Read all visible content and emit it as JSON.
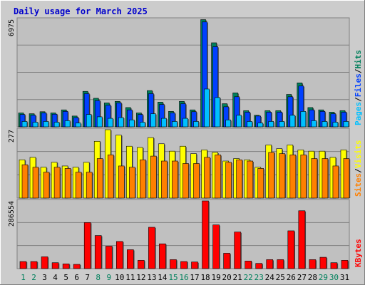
{
  "chart_data": {
    "type": "bar",
    "title": "Daily usage for March 2025",
    "categories": [
      "1",
      "2",
      "3",
      "4",
      "5",
      "6",
      "7",
      "8",
      "9",
      "10",
      "11",
      "12",
      "13",
      "14",
      "15",
      "16",
      "17",
      "18",
      "19",
      "20",
      "21",
      "22",
      "23",
      "24",
      "25",
      "26",
      "27",
      "28",
      "29",
      "30",
      "31"
    ],
    "weekend_days": [
      "1",
      "2",
      "8",
      "9",
      "15",
      "16",
      "22",
      "23",
      "29",
      "30"
    ],
    "panels": [
      {
        "id": "hits",
        "ymax": 6975,
        "ymax_label": "6975",
        "axis_label": {
          "parts": [
            "Pages",
            "/",
            "Files",
            "/",
            "Hits"
          ]
        },
        "series": [
          {
            "name": "Hits",
            "values": [
              900,
              850,
              980,
              900,
              1100,
              700,
              2300,
              1850,
              1550,
              1650,
              1250,
              900,
              2350,
              1600,
              1000,
              1650,
              1100,
              6950,
              5450,
              1500,
              2200,
              1050,
              750,
              1050,
              1050,
              2100,
              2850,
              1250,
              1100,
              950,
              1050
            ]
          },
          {
            "name": "Files",
            "values": [
              800,
              750,
              900,
              820,
              1000,
              600,
              2150,
              1700,
              1400,
              1550,
              1100,
              800,
              2150,
              1450,
              900,
              1500,
              980,
              6800,
              5200,
              1300,
              1950,
              950,
              700,
              950,
              950,
              1950,
              2650,
              1100,
              1000,
              850,
              950
            ]
          },
          {
            "name": "Pages",
            "values": [
              350,
              300,
              350,
              300,
              400,
              250,
              800,
              650,
              550,
              600,
              450,
              300,
              850,
              550,
              350,
              550,
              350,
              2450,
              1900,
              450,
              750,
              350,
              250,
              350,
              350,
              750,
              1000,
              400,
              350,
              300,
              350
            ]
          }
        ]
      },
      {
        "id": "visits",
        "ymax": 277,
        "ymax_label": "277",
        "axis_label": {
          "parts": [
            "Sites",
            "/",
            "Visits"
          ]
        },
        "series": [
          {
            "name": "Visits",
            "values": [
              155,
              165,
              125,
              145,
              130,
              125,
              145,
              230,
              277,
              255,
              210,
              205,
              245,
              220,
              190,
              210,
              180,
              195,
              185,
              150,
              160,
              155,
              125,
              215,
              200,
              215,
              195,
              190,
              190,
              165,
              195
            ]
          },
          {
            "name": "Sites",
            "values": [
              135,
              125,
              105,
              125,
              120,
              105,
              105,
              160,
              175,
              130,
              125,
              155,
              170,
              150,
              150,
              140,
              140,
              165,
              175,
              145,
              155,
              150,
              120,
              185,
              180,
              175,
              175,
              160,
              160,
              130,
              160
            ]
          }
        ]
      },
      {
        "id": "kbytes",
        "ymax": 286554,
        "ymax_label": "286554",
        "axis_label": {
          "parts": [
            "KBytes"
          ]
        },
        "series": [
          {
            "name": "KBytes",
            "values": [
              30000,
              30000,
              50000,
              25000,
              20000,
              18000,
              195000,
              140000,
              95000,
              115000,
              80000,
              35000,
              175000,
              105000,
              38000,
              30000,
              28000,
              286554,
              185000,
              65000,
              155000,
              32000,
              22000,
              38000,
              38000,
              160000,
              245000,
              38000,
              48000,
              25000,
              35000
            ]
          }
        ]
      }
    ],
    "colors": {
      "background": "#cccccc",
      "plot_background": "#c0c0c0",
      "grid": "#808080",
      "title": "#0000cc",
      "Hits": "#00805c",
      "Files": "#0040ff",
      "Pages": "#00c0ff",
      "Visits": "#ffff00",
      "Sites": "#ff8000",
      "KBytes": "#ff0000",
      "weekday_label": "#000000",
      "weekend_label": "#00805c"
    }
  }
}
